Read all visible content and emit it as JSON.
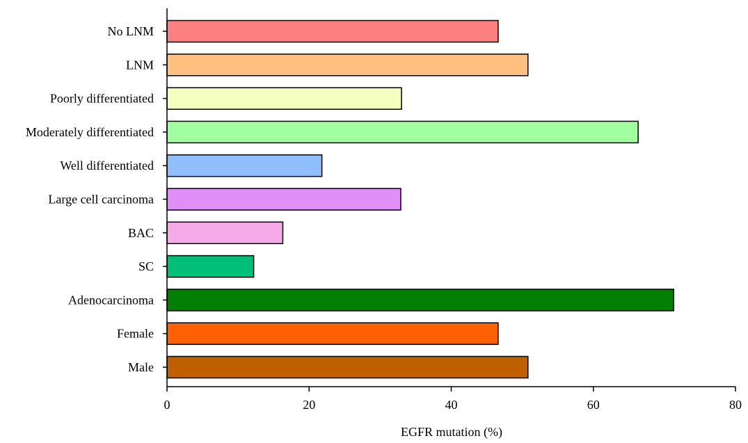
{
  "chart_data": {
    "type": "bar",
    "orientation": "horizontal",
    "categories": [
      "No LNM",
      "LNM",
      "Poorly differentiated",
      "Moderately differentiated",
      "Well differentiated",
      "Large cell carcinoma",
      "BAC",
      "SC",
      "Adenocarcinoma",
      "Female",
      "Male"
    ],
    "values": [
      46.6,
      50.8,
      33.0,
      66.3,
      21.8,
      32.9,
      16.3,
      12.2,
      71.3,
      46.6,
      50.8
    ],
    "colors": [
      "#ff8080",
      "#ffc080",
      "#f5ffbf",
      "#a2ff9f",
      "#8fbfff",
      "#df8ff7",
      "#f5aae8",
      "#00bf78",
      "#007f00",
      "#ff6000",
      "#bf6000"
    ],
    "xlabel": "EGFR mutation (%)",
    "ylabel": "",
    "title": "",
    "xlim": [
      0,
      80
    ],
    "xticks": [
      "0",
      "20",
      "40",
      "60",
      "80"
    ],
    "grid": false,
    "legend": false
  }
}
